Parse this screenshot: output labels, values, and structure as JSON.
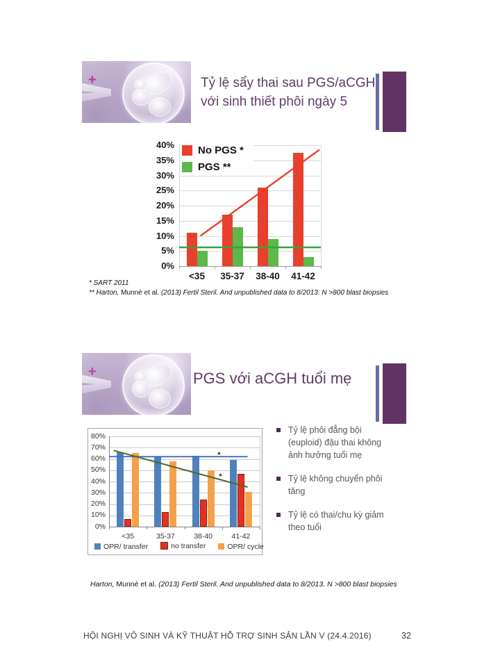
{
  "slide1": {
    "title": "Tỷ lệ sẩy thai sau PGS/aCGH với sinh thiết phôi ngày 5",
    "footnote1": "* SART 2011",
    "footnote2": {
      "a": "** Harton,",
      "b": " Munné et al. ",
      "c": "(2013) Fertil Steril. And unpublished data to 8/2013. N >800 blast biopsies"
    }
  },
  "slide2": {
    "title": "PGS với aCGH tuổi mẹ",
    "bullets": [
      "Tỷ lệ phôi đẳng bội (euploid) đậu thai không ảnh hưởng tuổi mẹ",
      "Tỷ lệ không chuyển phôi tăng",
      "Tỷ lệ có thai/chu kỳ giảm theo tuổi"
    ],
    "citation": {
      "a": "Harton,",
      "b": " Munné et al. ",
      "c": "(2013) Fertil Steril. And unpublished data to 8/2013. N >800 blast biopsies"
    }
  },
  "footer": {
    "text": "HỘI NGHỊ VÔ SINH VÀ KỸ THUẬT HỖ TRỢ SINH SẢN LẦN V (24.4.2016)",
    "page_number": "32"
  },
  "colors": {
    "title_purple": "#5f3a6a",
    "deco_bar_purple": "#623365",
    "deco_bar_slate": "#6b6ea3",
    "bullet_square": "#4b2a55"
  },
  "chart_data": [
    {
      "type": "bar",
      "categories": [
        "<35",
        "35-37",
        "38-40",
        "41-42"
      ],
      "series": [
        {
          "name": "No PGS *",
          "color": "#e8402c",
          "values": [
            11,
            17,
            26,
            37.5
          ]
        },
        {
          "name": "PGS **",
          "color": "#5cb94a",
          "values": [
            5,
            13,
            9,
            3
          ]
        }
      ],
      "ylim": [
        0,
        40
      ],
      "ytick_step": 5,
      "ytick_suffix": "%",
      "grid": true,
      "legend_position": "top-left-inside",
      "lines": [
        {
          "kind": "trend",
          "series": "No PGS *",
          "color": "#e8402c",
          "from": [
            15,
            10
          ],
          "to": [
            99,
            38.5
          ]
        },
        {
          "kind": "reference",
          "series": "PGS **",
          "color": "#38a338",
          "from": [
            0,
            6.2
          ],
          "to": [
            100,
            6.2
          ]
        }
      ]
    },
    {
      "type": "bar",
      "categories": [
        "<35",
        "35-37",
        "38-40",
        "41-42"
      ],
      "series": [
        {
          "name": "OPR/ transfer",
          "color": "#4f81bd",
          "values": [
            66,
            62,
            63,
            59
          ]
        },
        {
          "name": "no transfer",
          "color": "#e23222",
          "border": "#8c1f14",
          "values": [
            7,
            13,
            24,
            47
          ]
        },
        {
          "name": "OPR/ cycle",
          "color": "#f4a14b",
          "values": [
            65,
            58,
            50,
            31
          ]
        }
      ],
      "ylim": [
        0,
        80
      ],
      "ytick_step": 10,
      "ytick_suffix": "%",
      "grid": true,
      "legend_position": "bottom",
      "lines": [
        {
          "kind": "reference",
          "color": "#4472c4",
          "from": [
            0,
            62
          ],
          "to": [
            92,
            62
          ]
        },
        {
          "kind": "trend",
          "color": "#4c6b2a",
          "from": [
            3,
            67.5
          ],
          "to": [
            92,
            35
          ]
        }
      ],
      "annotations": [
        {
          "text": "*",
          "x": 72,
          "y": 64.5
        },
        {
          "text": "*",
          "x": 73,
          "y": 45.5
        }
      ]
    }
  ]
}
